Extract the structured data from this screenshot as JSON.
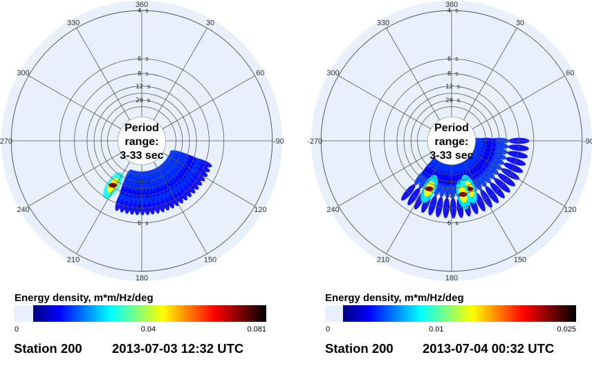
{
  "chart_data": [
    {
      "type": "heatmap",
      "subtype": "polar directional wave spectrum",
      "center_label": [
        "Period",
        "range:",
        "3-33 sec"
      ],
      "direction_labels": [
        "360",
        "30",
        "60",
        "-90",
        "120",
        "150",
        "180",
        "210",
        "240",
        "-270",
        "300",
        "330"
      ],
      "period_ring_labels": [
        "4 s",
        "6 s",
        "8 s",
        "12 s",
        "20 s"
      ],
      "colorbar": {
        "title": "Energy density, m*m/Hz/deg",
        "tick_labels": [
          "0",
          "0.04",
          "0.081"
        ],
        "min": 0,
        "max": 0.081,
        "colormap": "jet"
      },
      "footer": {
        "station": "Station 200",
        "timestamp": "2013-07-03 12:32 UTC"
      },
      "peaks": [
        {
          "direction_deg": 213,
          "period_s": 13,
          "energy": 0.081
        }
      ],
      "energy_band": {
        "direction_start_deg": 110,
        "direction_end_deg": 200,
        "period_range_s": [
          9,
          20
        ]
      }
    },
    {
      "type": "heatmap",
      "subtype": "polar directional wave spectrum",
      "center_label": [
        "Period",
        "range:",
        "3-33 sec"
      ],
      "direction_labels": [
        "360",
        "30",
        "60",
        "-90",
        "120",
        "150",
        "180",
        "210",
        "240",
        "-270",
        "300",
        "330"
      ],
      "period_ring_labels": [
        "4 s",
        "6 s",
        "8 s",
        "12 s",
        "20 s"
      ],
      "colorbar": {
        "title": "Energy density, m*m/Hz/deg",
        "tick_labels": [
          "0",
          "0.01",
          "0.025"
        ],
        "min": 0,
        "max": 0.025,
        "colormap": "jet"
      },
      "footer": {
        "station": "Station 200",
        "timestamp": "2013-07-04 00:32 UTC"
      },
      "peaks": [
        {
          "direction_deg": 160,
          "period_s": 14,
          "energy": 0.025
        },
        {
          "direction_deg": 168,
          "period_s": 12,
          "energy": 0.02
        },
        {
          "direction_deg": 205,
          "period_s": 13,
          "energy": 0.025
        }
      ],
      "energy_band": {
        "direction_start_deg": 90,
        "direction_end_deg": 220,
        "period_range_s": [
          8,
          33
        ]
      }
    }
  ],
  "colors": {
    "disk": "#e8f1fb",
    "grid": "#555555",
    "jet": [
      "#00007f",
      "#0000ff",
      "#007fff",
      "#00ffff",
      "#7fff7f",
      "#ffff00",
      "#ff7f00",
      "#ff0000",
      "#7f0000",
      "#000000"
    ]
  }
}
